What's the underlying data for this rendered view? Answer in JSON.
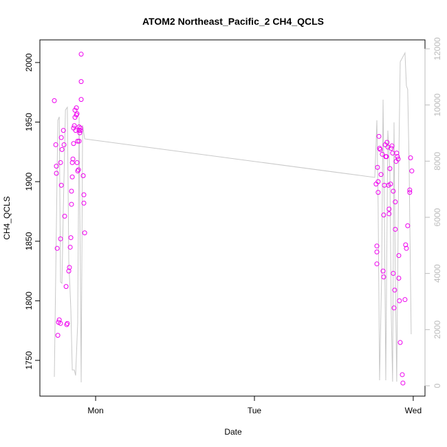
{
  "chart_data": {
    "type": "scatter",
    "title": "ATOM2 Northeast_Pacific_2 CH4_QCLS",
    "x_label": "Date",
    "y_label": "CH4_QCLS",
    "xlim": [
      0.649,
      3.074
    ],
    "xticks": [
      {
        "value": 1,
        "label": "Mon"
      },
      {
        "value": 2,
        "label": "Tue"
      },
      {
        "value": 3,
        "label": "Wed"
      }
    ],
    "ylim": [
      1720,
      2019
    ],
    "yticks": [
      1750,
      1800,
      1850,
      1900,
      1950,
      2000
    ],
    "y2lim": [
      -367,
      12318
    ],
    "y2ticks": [
      0,
      2000,
      4000,
      6000,
      8000,
      10000,
      12000
    ],
    "y2tick_color": "#bbbbbb",
    "series": [
      {
        "type": "scatter",
        "color": "#ee00ee",
        "x": [
          0.74,
          0.749,
          0.753,
          0.753,
          0.758,
          0.762,
          0.766,
          0.771,
          0.779,
          0.779,
          0.779,
          0.784,
          0.788,
          0.784,
          0.797,
          0.801,
          0.805,
          0.814,
          0.818,
          0.822,
          0.831,
          0.835,
          0.84,
          0.844,
          0.848,
          0.848,
          0.853,
          0.853,
          0.857,
          0.861,
          0.861,
          0.866,
          0.87,
          0.87,
          0.874,
          0.879,
          0.879,
          0.883,
          0.883,
          0.887,
          0.887,
          0.892,
          0.896,
          0.896,
          0.896,
          0.9,
          0.905,
          0.905,
          0.909,
          0.909,
          0.909,
          0.922,
          0.926,
          0.926,
          0.931,
          2.766,
          2.771,
          2.771,
          2.771,
          2.775,
          2.779,
          2.779,
          2.784,
          2.788,
          2.792,
          2.797,
          2.805,
          2.81,
          2.814,
          2.814,
          2.818,
          2.823,
          2.827,
          2.831,
          2.835,
          2.84,
          2.844,
          2.848,
          2.848,
          2.853,
          2.857,
          2.861,
          2.866,
          2.87,
          2.874,
          2.874,
          2.879,
          2.883,
          2.887,
          2.887,
          2.892,
          2.896,
          2.9,
          2.905,
          2.909,
          2.909,
          2.913,
          2.918,
          2.931,
          2.935,
          2.948,
          2.952,
          2.957,
          2.965,
          2.978,
          2.978,
          2.983,
          2.991
        ],
        "values": [
          1968,
          1931,
          1913,
          1907,
          1844,
          1771,
          1782,
          1784,
          1781,
          1852,
          1916,
          1897,
          1927,
          1937,
          1943,
          1931,
          1871,
          1812,
          1780,
          1781,
          1825,
          1828,
          1845,
          1853,
          1881,
          1892,
          1904,
          1916,
          1919,
          1932,
          1945,
          1947,
          1954,
          1960,
          1943,
          1956,
          1962,
          1957,
          1916,
          1934,
          1909,
          1910,
          1943,
          1946,
          1934,
          1941,
          1943,
          1945,
          2007,
          1984,
          1969,
          1905,
          1889,
          1882,
          1857,
          1898,
          1846,
          1841,
          1831,
          1912,
          1900,
          1891,
          1938,
          1928,
          1927,
          1906,
          1923,
          1825,
          1820,
          1872,
          1897,
          1931,
          1921,
          1921,
          1933,
          1929,
          1897,
          1877,
          1873,
          1911,
          1898,
          1928,
          1930,
          1924,
          1892,
          1823,
          1794,
          1809,
          1883,
          1860,
          1917,
          1924,
          1921,
          1919,
          1838,
          1819,
          1800,
          1765,
          1738,
          1731,
          1801,
          1847,
          1844,
          1863,
          1893,
          1891,
          1920,
          1909
        ]
      },
      {
        "type": "line",
        "color": "#c8c8c8",
        "axis": "y2",
        "x": [
          0.74,
          0.762,
          0.771,
          0.779,
          0.788,
          0.797,
          0.81,
          0.822,
          0.831,
          0.844,
          0.853,
          0.866,
          0.874,
          0.887,
          0.896,
          0.909,
          0.918,
          0.931,
          2.758,
          2.771,
          2.779,
          2.788,
          2.801,
          2.81,
          2.818,
          2.827,
          2.84,
          2.853,
          2.861,
          2.87,
          2.879,
          2.887,
          2.896,
          2.909,
          2.918,
          2.948,
          2.957,
          2.965,
          2.974,
          2.987
        ],
        "values": [
          318,
          9454,
          9577,
          3698,
          3649,
          6392,
          9821,
          9919,
          4433,
          2719,
          563,
          563,
          367,
          2229,
          9577,
          122,
          9282,
          8793,
          7421,
          9454,
          6392,
          196,
          3943,
          10189,
          6392,
          196,
          9087,
          7617,
          2719,
          147,
          9381,
          3943,
          147,
          7985,
          11536,
          11854,
          10679,
          10556,
          7862,
          1837
        ]
      }
    ]
  }
}
